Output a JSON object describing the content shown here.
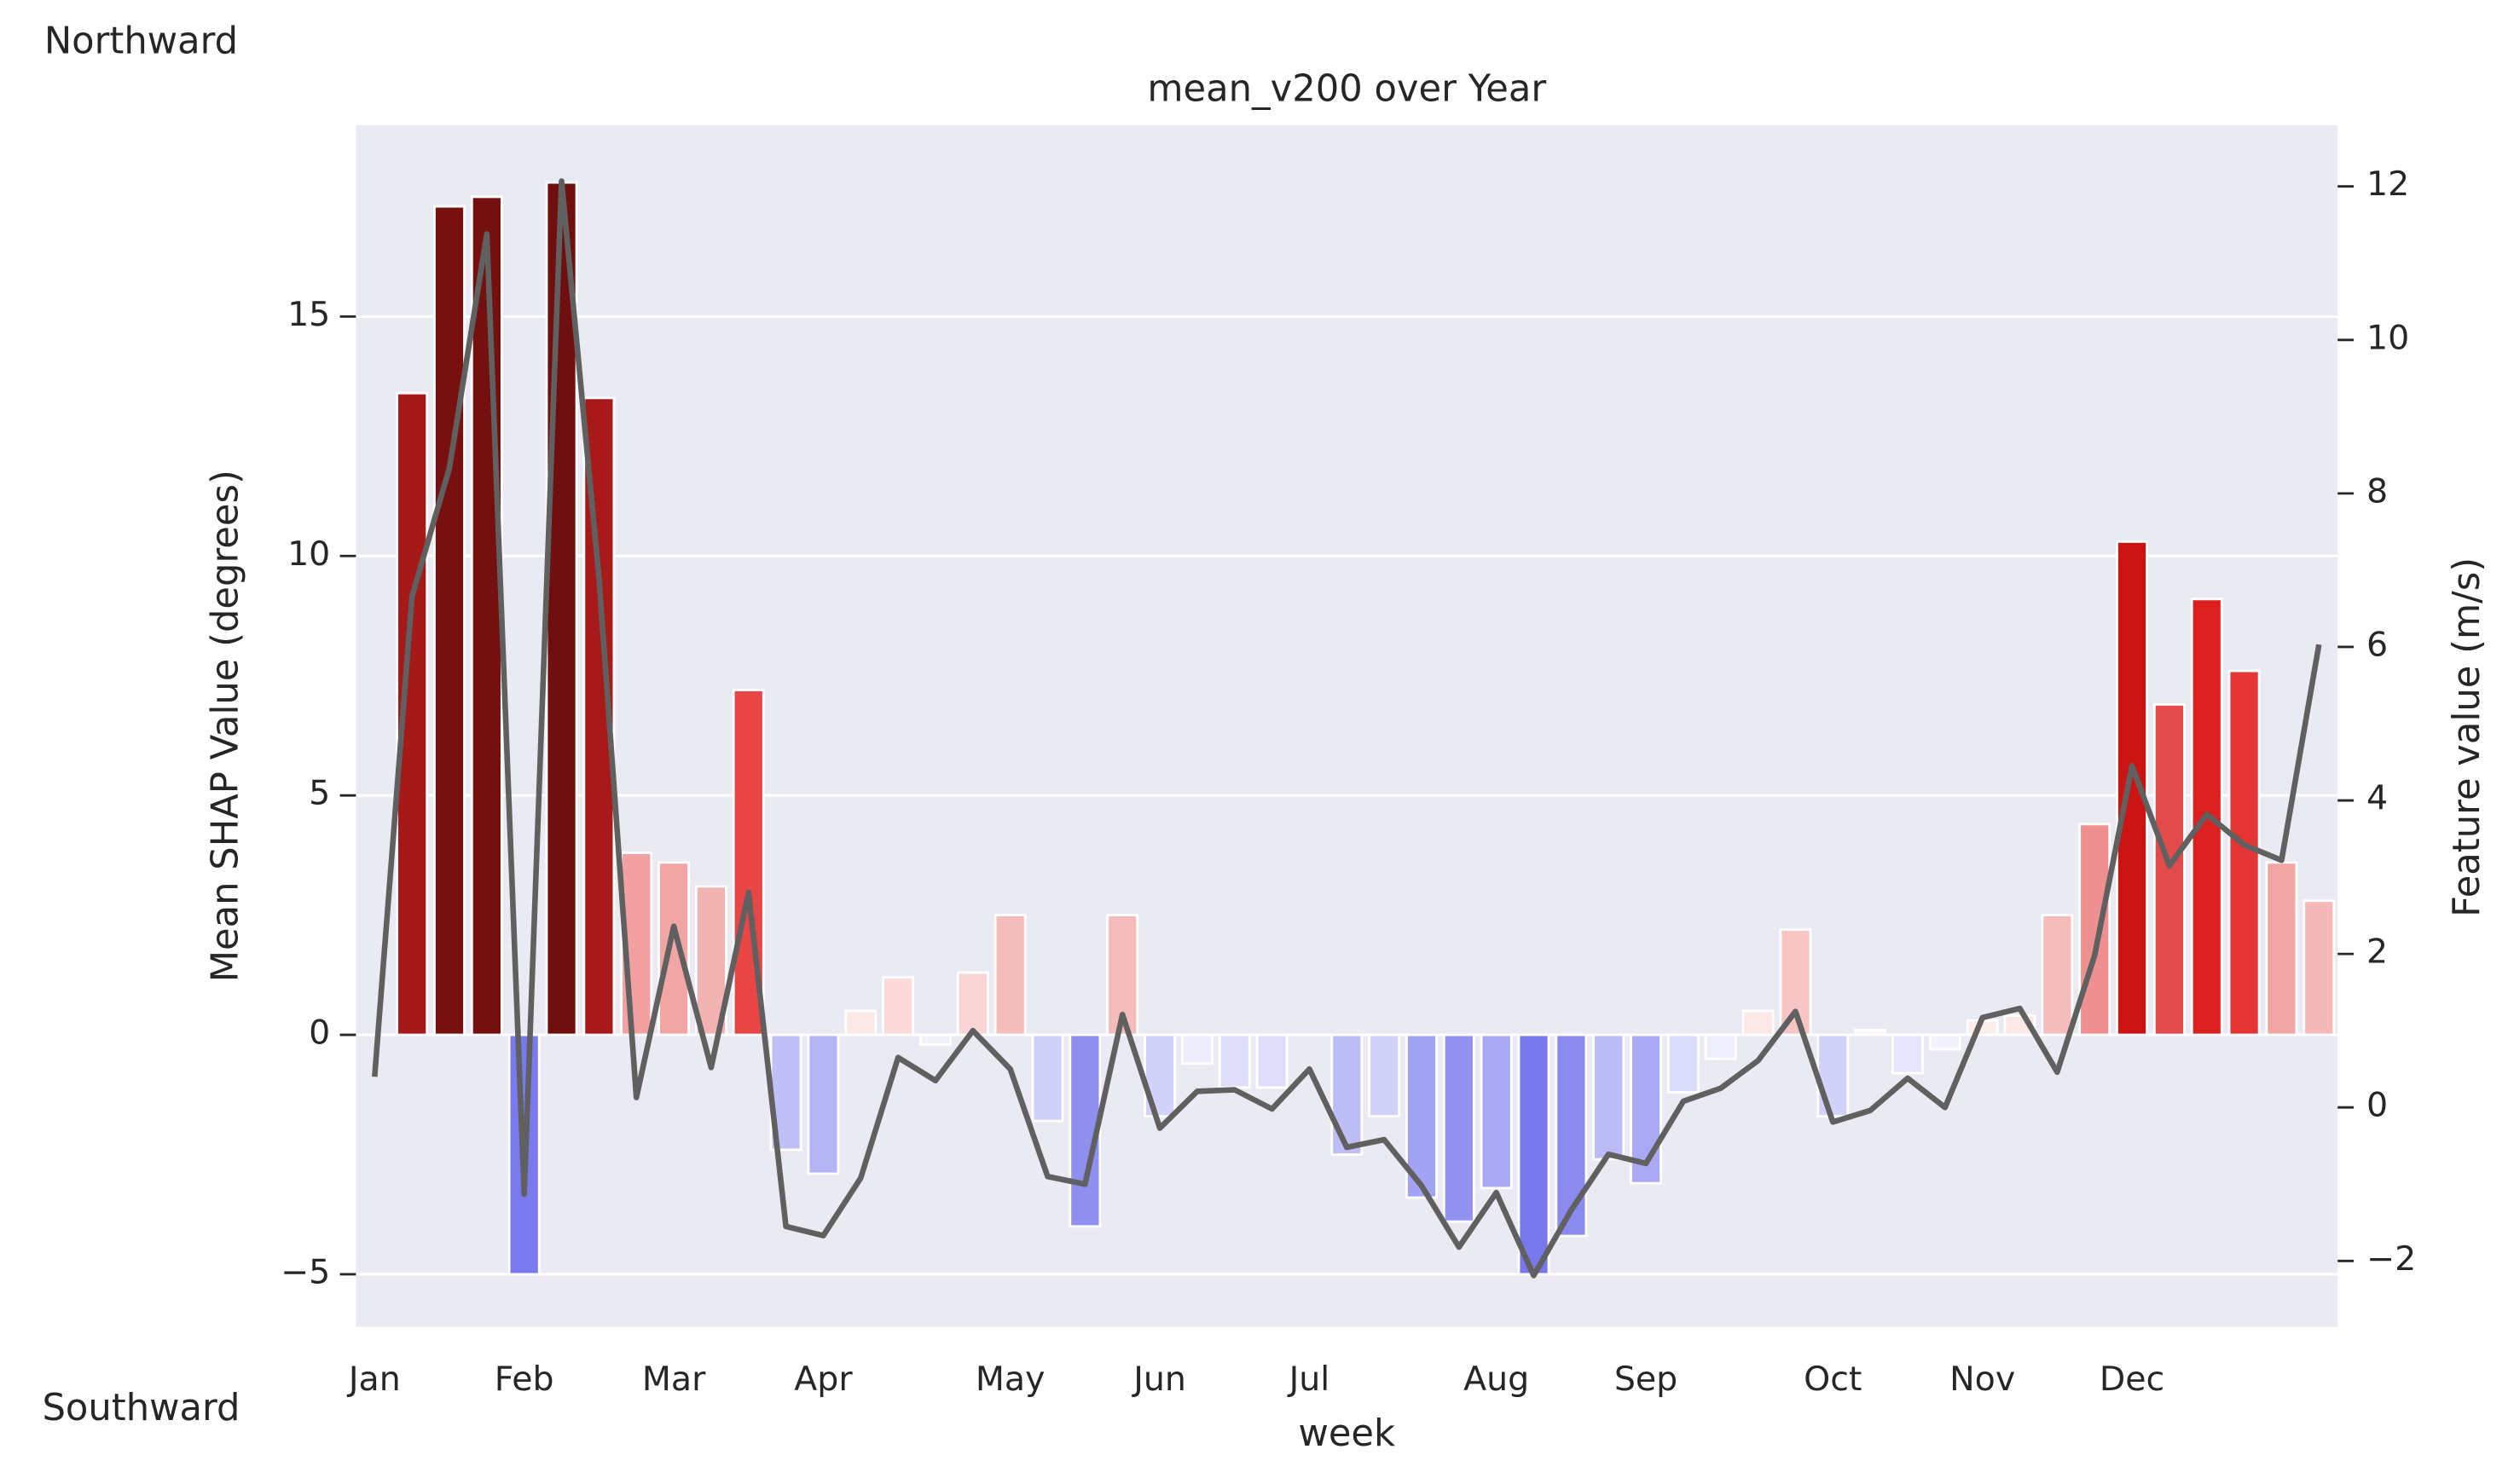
{
  "chart_data": {
    "type": "bar",
    "title": "mean_v200 over Year",
    "xlabel": "week",
    "ylabel": "Mean SHAP Value (degrees)",
    "y2label": "Feature value (m/s)",
    "annotations": [
      "Northward",
      "Southward"
    ],
    "categories": [
      "Jan",
      null,
      null,
      null,
      "Feb",
      null,
      null,
      null,
      "Mar",
      null,
      null,
      null,
      "Apr",
      null,
      null,
      null,
      null,
      "May",
      null,
      null,
      null,
      "Jun",
      null,
      null,
      null,
      "Jul",
      null,
      null,
      null,
      null,
      "Aug",
      null,
      null,
      null,
      "Sep",
      null,
      null,
      null,
      null,
      "Oct",
      null,
      null,
      null,
      "Nov",
      null,
      null,
      null,
      "Dec",
      null,
      null,
      null,
      null,
      null
    ],
    "series": [
      {
        "type": "bar",
        "values": [
          0,
          13.4,
          17.3,
          17.5,
          -5.0,
          17.8,
          13.3,
          3.8,
          3.6,
          3.1,
          7.2,
          -2.4,
          -2.9,
          0.5,
          1.2,
          -0.2,
          1.3,
          2.5,
          -1.8,
          -4.0,
          2.5,
          -1.7,
          -0.6,
          -1.1,
          -1.1,
          0,
          -2.5,
          -1.7,
          -3.4,
          -3.9,
          -3.2,
          -5.0,
          -4.2,
          -2.6,
          -3.1,
          -1.2,
          -0.5,
          0.5,
          2.2,
          -1.7,
          0.1,
          -0.8,
          -0.3,
          0.3,
          0.4,
          2.5,
          4.4,
          10.3,
          6.9,
          9.1,
          7.6,
          3.6,
          2.8
        ],
        "colors": [
          "#f5f5fa",
          "#a51919",
          "#781010",
          "#741010",
          "#7a7aee",
          "#700f0f",
          "#a81a1a",
          "#f2a0a0",
          "#f2a5a5",
          "#f4b3b3",
          "#e84545",
          "#c0c0f7",
          "#b5b5f5",
          "#fde8e8",
          "#fcdada",
          "#f2f2fd",
          "#fad5d5",
          "#f5bcbc",
          "#d0d0f9",
          "#8f8ff0",
          "#f5bcbc",
          "#d2d2fa",
          "#ececfd",
          "#dedefb",
          "#dedefb",
          "#f5f5fa",
          "#bebef7",
          "#d2d2fa",
          "#a3a3f3",
          "#9292f1",
          "#a8a8f4",
          "#7878ec",
          "#8a8aef",
          "#bbbbf6",
          "#aaaaf4",
          "#dcdcfb",
          "#eeeefd",
          "#fde8e8",
          "#f8c5c5",
          "#d2d2fa",
          "#fef8f8",
          "#e6e6fc",
          "#f2f2fd",
          "#fdeeee",
          "#fde8e8",
          "#f5bcbc",
          "#ef9090",
          "#cc1414",
          "#e24b4b",
          "#dc1f1f",
          "#e43535",
          "#f2a5a5",
          "#f4b8b8"
        ]
      },
      {
        "type": "line",
        "axis": "y2",
        "color": "#606060",
        "values": [
          0.4,
          6.66,
          8.33,
          11.38,
          -1.13,
          12.07,
          6.9,
          0.13,
          2.36,
          0.52,
          2.8,
          -1.55,
          -1.67,
          -0.92,
          0.65,
          0.35,
          1.0,
          0.5,
          -0.9,
          -1.0,
          1.21,
          -0.27,
          0.21,
          0.23,
          -0.02,
          0.5,
          -0.52,
          -0.42,
          -1.02,
          -1.82,
          -1.11,
          -2.19,
          -1.34,
          -0.61,
          -0.73,
          0.08,
          0.25,
          0.61,
          1.25,
          -0.19,
          -0.04,
          0.38,
          0,
          1.17,
          1.29,
          0.46,
          1.98,
          4.45,
          3.15,
          3.82,
          3.42,
          3.22,
          6.03
        ]
      }
    ],
    "ylim": [
      -6.1,
      19
    ],
    "yticks": [
      {
        "value": -5,
        "label": "−5"
      },
      0,
      5,
      10,
      15
    ],
    "y2lim": [
      -2.86,
      12.8
    ],
    "y2ticks": [
      {
        "value": -2,
        "label": "−2"
      },
      0,
      2,
      4,
      6,
      8,
      10,
      12
    ],
    "grid": true,
    "background": "#eaeaf2"
  }
}
